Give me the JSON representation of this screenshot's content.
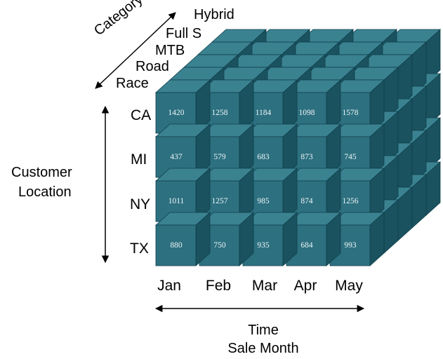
{
  "diagram": {
    "category_axis_label": "Category",
    "categories": [
      "Hybrid",
      "Full S",
      "MTB",
      "Road",
      "Race"
    ],
    "location_axis_label_line1": "Customer",
    "location_axis_label_line2": "Location",
    "locations": [
      "CA",
      "MI",
      "NY",
      "TX"
    ],
    "months": [
      "Jan",
      "Feb",
      "Mar",
      "Apr",
      "May"
    ],
    "time_axis_label_line1": "Time",
    "time_axis_label_line2": "Sale Month",
    "values": [
      [
        "1420",
        "1258",
        "1184",
        "1098",
        "1578"
      ],
      [
        "437",
        "579",
        "683",
        "873",
        "745"
      ],
      [
        "1011",
        "1257",
        "985",
        "874",
        "1256"
      ],
      [
        "880",
        "750",
        "935",
        "684",
        "993"
      ]
    ]
  },
  "colors": {
    "front": "#2d7080",
    "top": "#3b8291",
    "side": "#1a525f",
    "edge": "#0f3f4a",
    "value_text": "#eef6f7"
  }
}
